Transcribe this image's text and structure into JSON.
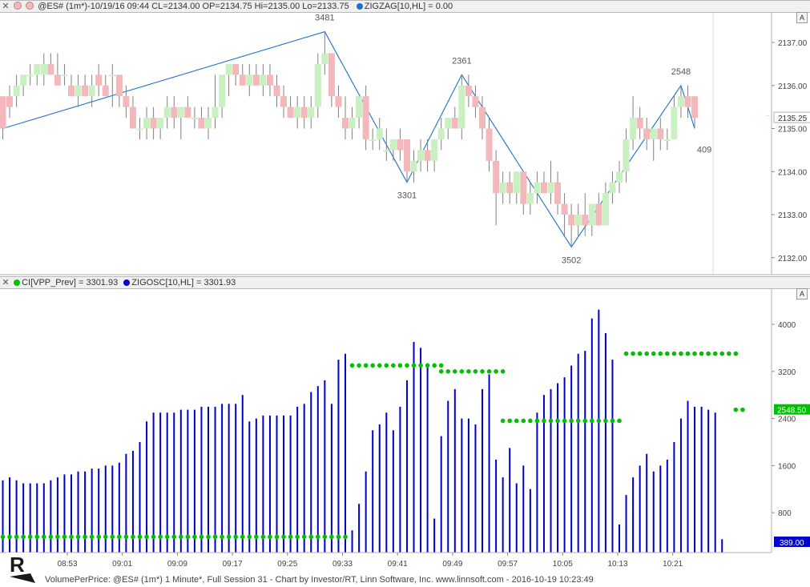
{
  "top_panel": {
    "header": {
      "symbol_info": "@ES# (1m*)-10/19/16 09:44 CL=2134.00 OP=2134.75 Hi=2135.00 Lo=2133.75",
      "indicator": "ZIGZAG[10,HL] = 0.00"
    },
    "auto_scale_label": "A",
    "price_ticks": [
      "2137.00",
      "2136.00",
      "2135.00",
      "2134.00",
      "2133.00",
      "2132.00"
    ],
    "last_price_label": "2135.25",
    "colors": {
      "up_candle": "#c8f0c0",
      "down_candle": "#f3b8bc",
      "wick": "#808080",
      "zigzag": "#1f6fd0"
    }
  },
  "bottom_panel": {
    "header": {
      "indicator1": "CI[VPP_Prev] = 3301.93",
      "indicator2": "ZIGOSC[10,HL] = 3301.93"
    },
    "auto_scale_label": "A",
    "value_ticks": [
      "4000",
      "3200",
      "2400",
      "1600",
      "800"
    ],
    "last_green_label": "2548.50",
    "last_blue_label": "389.00",
    "colors": {
      "bars": "#0000cc",
      "dots": "#00c000",
      "green_badge": "#00c000",
      "blue_badge": "#0000cc"
    }
  },
  "time_ticks": [
    "08:53",
    "09:01",
    "09:09",
    "09:17",
    "09:25",
    "09:33",
    "09:41",
    "09:49",
    "09:57",
    "10:05",
    "10:13",
    "10:21"
  ],
  "footer": {
    "text": "VolumePerPrice: @ES# (1m*) 1 Minute*, Full Session 31 - Chart by Investor/RT, Linn Software, Inc. www.linnsoft.com - 2016-10-19 10:23:49"
  },
  "chart_data": [
    {
      "type": "candlestick",
      "title": "@ES# (1m*)",
      "x_labels": [
        "08:53",
        "09:01",
        "09:09",
        "09:17",
        "09:25",
        "09:33",
        "09:41",
        "09:49",
        "09:57",
        "10:05",
        "10:13",
        "10:21"
      ],
      "ylim": [
        2131.6,
        2137.5
      ],
      "zigzag": {
        "points": [
          {
            "bar": 0,
            "price": 2135.0
          },
          {
            "bar": 47,
            "price": 2137.25,
            "label": "3481"
          },
          {
            "bar": 59,
            "price": 2133.75,
            "label": "3301"
          },
          {
            "bar": 67,
            "price": 2136.25,
            "label": "2361"
          },
          {
            "bar": 83,
            "price": 2132.25,
            "label": "3502"
          },
          {
            "bar": 99,
            "price": 2136.0,
            "label": "2548"
          },
          {
            "bar": 101,
            "price": 2135.0,
            "label": "409"
          }
        ]
      },
      "candles": [
        {
          "o": 2135.75,
          "h": 2135.75,
          "l": 2134.75,
          "c": 2135.0
        },
        {
          "o": 2135.75,
          "h": 2136.0,
          "l": 2135.25,
          "c": 2135.5
        },
        {
          "o": 2135.75,
          "h": 2136.25,
          "l": 2135.5,
          "c": 2136.0
        },
        {
          "o": 2136.0,
          "h": 2136.25,
          "l": 2135.75,
          "c": 2136.25
        },
        {
          "o": 2136.25,
          "h": 2136.5,
          "l": 2136.0,
          "c": 2136.25
        },
        {
          "o": 2136.25,
          "h": 2136.5,
          "l": 2136.0,
          "c": 2136.5
        },
        {
          "o": 2136.25,
          "h": 2136.75,
          "l": 2136.0,
          "c": 2136.5
        },
        {
          "o": 2136.5,
          "h": 2136.75,
          "l": 2136.25,
          "c": 2136.25
        },
        {
          "o": 2136.25,
          "h": 2136.75,
          "l": 2136.0,
          "c": 2136.0
        },
        {
          "o": 2136.25,
          "h": 2136.5,
          "l": 2136.0,
          "c": 2136.25
        },
        {
          "o": 2136.0,
          "h": 2136.25,
          "l": 2135.75,
          "c": 2135.75
        },
        {
          "o": 2135.75,
          "h": 2136.25,
          "l": 2135.5,
          "c": 2136.0
        },
        {
          "o": 2136.0,
          "h": 2136.25,
          "l": 2135.75,
          "c": 2135.75
        },
        {
          "o": 2135.75,
          "h": 2136.25,
          "l": 2135.5,
          "c": 2136.0
        },
        {
          "o": 2136.25,
          "h": 2136.5,
          "l": 2135.75,
          "c": 2136.0
        },
        {
          "o": 2136.0,
          "h": 2136.25,
          "l": 2135.75,
          "c": 2135.75
        },
        {
          "o": 2136.25,
          "h": 2136.5,
          "l": 2135.5,
          "c": 2136.25
        },
        {
          "o": 2136.25,
          "h": 2136.25,
          "l": 2135.5,
          "c": 2135.75
        },
        {
          "o": 2135.75,
          "h": 2136.0,
          "l": 2135.25,
          "c": 2135.5
        },
        {
          "o": 2135.5,
          "h": 2135.75,
          "l": 2135.0,
          "c": 2135.0
        },
        {
          "o": 2135.0,
          "h": 2135.25,
          "l": 2134.75,
          "c": 2135.0
        },
        {
          "o": 2135.0,
          "h": 2135.5,
          "l": 2134.75,
          "c": 2135.25
        },
        {
          "o": 2135.25,
          "h": 2135.5,
          "l": 2134.75,
          "c": 2135.0
        },
        {
          "o": 2135.0,
          "h": 2135.25,
          "l": 2134.75,
          "c": 2135.25
        },
        {
          "o": 2135.25,
          "h": 2135.75,
          "l": 2135.0,
          "c": 2135.5
        },
        {
          "o": 2135.5,
          "h": 2135.75,
          "l": 2135.0,
          "c": 2135.25
        },
        {
          "o": 2135.25,
          "h": 2135.5,
          "l": 2134.75,
          "c": 2135.5
        },
        {
          "o": 2135.5,
          "h": 2135.75,
          "l": 2135.25,
          "c": 2135.25
        },
        {
          "o": 2135.25,
          "h": 2135.5,
          "l": 2135.0,
          "c": 2135.25
        },
        {
          "o": 2135.25,
          "h": 2135.5,
          "l": 2135.0,
          "c": 2135.0
        },
        {
          "o": 2135.0,
          "h": 2135.5,
          "l": 2134.75,
          "c": 2135.25
        },
        {
          "o": 2135.25,
          "h": 2136.25,
          "l": 2135.0,
          "c": 2135.5
        },
        {
          "o": 2135.5,
          "h": 2136.25,
          "l": 2135.25,
          "c": 2136.25
        },
        {
          "o": 2136.25,
          "h": 2136.5,
          "l": 2135.75,
          "c": 2136.5
        },
        {
          "o": 2136.5,
          "h": 2136.5,
          "l": 2136.0,
          "c": 2136.25
        },
        {
          "o": 2136.25,
          "h": 2136.5,
          "l": 2136.0,
          "c": 2136.0
        },
        {
          "o": 2136.0,
          "h": 2136.5,
          "l": 2135.75,
          "c": 2136.25
        },
        {
          "o": 2136.25,
          "h": 2136.5,
          "l": 2136.0,
          "c": 2136.0
        },
        {
          "o": 2136.0,
          "h": 2136.5,
          "l": 2135.75,
          "c": 2136.25
        },
        {
          "o": 2136.25,
          "h": 2136.5,
          "l": 2135.75,
          "c": 2136.0
        },
        {
          "o": 2136.0,
          "h": 2136.25,
          "l": 2135.5,
          "c": 2135.75
        },
        {
          "o": 2135.75,
          "h": 2136.0,
          "l": 2135.25,
          "c": 2135.5
        },
        {
          "o": 2135.5,
          "h": 2135.75,
          "l": 2135.25,
          "c": 2135.25
        },
        {
          "o": 2135.25,
          "h": 2135.75,
          "l": 2135.0,
          "c": 2135.5
        },
        {
          "o": 2135.5,
          "h": 2135.75,
          "l": 2135.0,
          "c": 2135.25
        },
        {
          "o": 2135.25,
          "h": 2135.75,
          "l": 2135.0,
          "c": 2135.5
        },
        {
          "o": 2135.5,
          "h": 2136.75,
          "l": 2135.25,
          "c": 2136.5
        },
        {
          "o": 2136.5,
          "h": 2137.25,
          "l": 2136.25,
          "c": 2136.75
        },
        {
          "o": 2136.75,
          "h": 2136.75,
          "l": 2135.5,
          "c": 2135.75
        },
        {
          "o": 2135.75,
          "h": 2136.0,
          "l": 2135.25,
          "c": 2135.5
        },
        {
          "o": 2135.25,
          "h": 2135.75,
          "l": 2134.75,
          "c": 2135.0
        },
        {
          "o": 2135.0,
          "h": 2135.5,
          "l": 2134.75,
          "c": 2135.25
        },
        {
          "o": 2135.25,
          "h": 2135.75,
          "l": 2135.0,
          "c": 2135.75
        },
        {
          "o": 2135.75,
          "h": 2136.0,
          "l": 2134.5,
          "c": 2134.75
        },
        {
          "o": 2134.75,
          "h": 2135.0,
          "l": 2134.5,
          "c": 2134.75
        },
        {
          "o": 2134.75,
          "h": 2135.25,
          "l": 2134.5,
          "c": 2135.0
        },
        {
          "o": 2134.5,
          "h": 2135.0,
          "l": 2134.25,
          "c": 2134.5
        },
        {
          "o": 2134.5,
          "h": 2134.75,
          "l": 2134.25,
          "c": 2134.75
        },
        {
          "o": 2134.75,
          "h": 2135.0,
          "l": 2134.25,
          "c": 2134.5
        },
        {
          "o": 2134.75,
          "h": 2134.75,
          "l": 2133.75,
          "c": 2134.0
        },
        {
          "o": 2134.0,
          "h": 2134.5,
          "l": 2133.75,
          "c": 2134.25
        },
        {
          "o": 2134.25,
          "h": 2134.75,
          "l": 2134.0,
          "c": 2134.5
        },
        {
          "o": 2134.5,
          "h": 2134.75,
          "l": 2134.0,
          "c": 2134.25
        },
        {
          "o": 2134.25,
          "h": 2134.75,
          "l": 2134.0,
          "c": 2134.75
        },
        {
          "o": 2134.75,
          "h": 2135.25,
          "l": 2134.5,
          "c": 2135.0
        },
        {
          "o": 2135.0,
          "h": 2135.25,
          "l": 2134.75,
          "c": 2135.25
        },
        {
          "o": 2135.25,
          "h": 2135.5,
          "l": 2135.0,
          "c": 2135.0
        },
        {
          "o": 2135.0,
          "h": 2136.25,
          "l": 2134.75,
          "c": 2136.0
        },
        {
          "o": 2136.0,
          "h": 2136.25,
          "l": 2135.5,
          "c": 2135.75
        },
        {
          "o": 2135.75,
          "h": 2136.0,
          "l": 2135.25,
          "c": 2135.5
        },
        {
          "o": 2135.5,
          "h": 2135.75,
          "l": 2134.75,
          "c": 2135.0
        },
        {
          "o": 2135.0,
          "h": 2135.25,
          "l": 2134.0,
          "c": 2134.25
        },
        {
          "o": 2134.25,
          "h": 2134.5,
          "l": 2132.75,
          "c": 2133.5
        },
        {
          "o": 2133.5,
          "h": 2134.0,
          "l": 2133.25,
          "c": 2133.75
        },
        {
          "o": 2133.75,
          "h": 2134.0,
          "l": 2133.25,
          "c": 2133.5
        },
        {
          "o": 2133.5,
          "h": 2134.0,
          "l": 2133.25,
          "c": 2134.0
        },
        {
          "o": 2134.0,
          "h": 2134.0,
          "l": 2133.0,
          "c": 2133.25
        },
        {
          "o": 2133.25,
          "h": 2133.75,
          "l": 2133.0,
          "c": 2133.5
        },
        {
          "o": 2133.5,
          "h": 2134.0,
          "l": 2133.25,
          "c": 2133.75
        },
        {
          "o": 2133.75,
          "h": 2134.0,
          "l": 2133.5,
          "c": 2133.5
        },
        {
          "o": 2133.5,
          "h": 2134.25,
          "l": 2133.25,
          "c": 2133.75
        },
        {
          "o": 2133.75,
          "h": 2134.0,
          "l": 2133.0,
          "c": 2133.25
        },
        {
          "o": 2133.25,
          "h": 2133.5,
          "l": 2132.5,
          "c": 2133.0
        },
        {
          "o": 2133.0,
          "h": 2133.25,
          "l": 2132.25,
          "c": 2132.75
        },
        {
          "o": 2132.75,
          "h": 2133.25,
          "l": 2132.5,
          "c": 2133.0
        },
        {
          "o": 2133.0,
          "h": 2133.5,
          "l": 2132.5,
          "c": 2132.75
        },
        {
          "o": 2132.75,
          "h": 2133.25,
          "l": 2132.5,
          "c": 2133.25
        },
        {
          "o": 2133.25,
          "h": 2133.5,
          "l": 2132.75,
          "c": 2132.75
        },
        {
          "o": 2132.75,
          "h": 2133.75,
          "l": 2132.75,
          "c": 2133.5
        },
        {
          "o": 2133.5,
          "h": 2134.0,
          "l": 2133.25,
          "c": 2133.75
        },
        {
          "o": 2133.75,
          "h": 2134.25,
          "l": 2133.5,
          "c": 2134.0
        },
        {
          "o": 2134.0,
          "h": 2135.0,
          "l": 2133.75,
          "c": 2134.75
        },
        {
          "o": 2134.75,
          "h": 2135.75,
          "l": 2134.5,
          "c": 2135.25
        },
        {
          "o": 2135.25,
          "h": 2135.5,
          "l": 2134.75,
          "c": 2135.0
        },
        {
          "o": 2135.0,
          "h": 2135.25,
          "l": 2134.5,
          "c": 2134.75
        },
        {
          "o": 2134.75,
          "h": 2135.0,
          "l": 2134.25,
          "c": 2135.0
        },
        {
          "o": 2135.0,
          "h": 2135.25,
          "l": 2134.5,
          "c": 2134.75
        },
        {
          "o": 2134.75,
          "h": 2135.0,
          "l": 2134.5,
          "c": 2134.75
        },
        {
          "o": 2134.75,
          "h": 2135.75,
          "l": 2134.75,
          "c": 2135.5
        },
        {
          "o": 2135.5,
          "h": 2136.0,
          "l": 2135.25,
          "c": 2135.75
        },
        {
          "o": 2135.75,
          "h": 2136.0,
          "l": 2135.25,
          "c": 2135.5
        },
        {
          "o": 2135.75,
          "h": 2135.75,
          "l": 2135.0,
          "c": 2135.25
        }
      ]
    },
    {
      "type": "bar",
      "title": "CI[VPP_Prev] / ZIGOSC[10,HL]",
      "ylim": [
        200,
        4500
      ],
      "series": [
        {
          "name": "ZIGOSC[10,HL]",
          "values": [
            1350,
            1400,
            1350,
            1300,
            1300,
            1300,
            1300,
            1350,
            1400,
            1450,
            1450,
            1500,
            1500,
            1550,
            1550,
            1600,
            1600,
            1650,
            1800,
            1850,
            2000,
            2350,
            2500,
            2500,
            2500,
            2500,
            2550,
            2550,
            2550,
            2600,
            2600,
            2600,
            2650,
            2650,
            2650,
            2800,
            2350,
            2400,
            2450,
            2450,
            2450,
            2450,
            2450,
            2600,
            2650,
            2850,
            2950,
            3050,
            2650,
            3400,
            3500,
            500,
            950,
            1500,
            2200,
            2300,
            2500,
            2200,
            2600,
            3050,
            3700,
            3600,
            3300,
            700,
            2100,
            2700,
            2900,
            2400,
            2400,
            2300,
            2900,
            3150,
            1700,
            1400,
            1900,
            1300,
            1600,
            1200,
            2500,
            2800,
            2900,
            3000,
            3100,
            3300,
            3500,
            3550,
            4100,
            4250,
            3850,
            3400,
            600,
            1100,
            1400,
            1600,
            1800,
            1500,
            1600,
            1700,
            2000,
            2400,
            2700,
            2600,
            2600,
            2550,
            2500,
            350
          ],
          "color": "#0000cc"
        },
        {
          "name": "CI[VPP_Prev]",
          "segments": [
            {
              "from_bar": 0,
              "to_bar": 50,
              "value": 389
            },
            {
              "from_bar": 51,
              "to_bar": 64,
              "value": 3301.93
            },
            {
              "from_bar": 64,
              "to_bar": 73,
              "value": 3200
            },
            {
              "from_bar": 73,
              "to_bar": 90,
              "value": 2361
            },
            {
              "from_bar": 91,
              "to_bar": 107,
              "value": 3502
            },
            {
              "from_bar": 107,
              "to_bar": 108,
              "value": 2548.5
            }
          ],
          "color": "#00c000"
        }
      ]
    }
  ]
}
